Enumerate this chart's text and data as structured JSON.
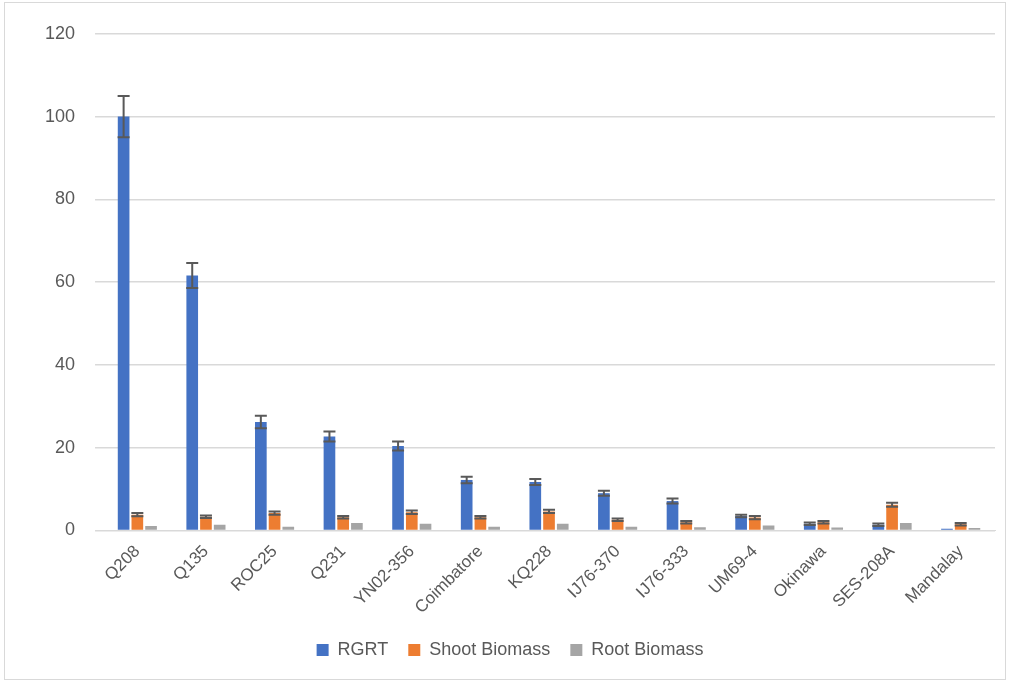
{
  "chart_data": {
    "type": "bar",
    "categories": [
      "Q208",
      "Q135",
      "ROC25",
      "Q231",
      "YN02-356",
      "Coimbatore",
      "KQ228",
      "IJ76-370",
      "IJ76-333",
      "UM69-4",
      "Okinawa",
      "SES-208A",
      "Mandalay"
    ],
    "series": [
      {
        "name": "RGRT",
        "color": "#4472c4",
        "values": [
          100,
          61.6,
          26.2,
          22.7,
          20.4,
          12.2,
          11.7,
          9.0,
          7.1,
          3.5,
          1.6,
          1.4,
          0.4
        ],
        "errors": [
          5,
          3,
          1.5,
          1.2,
          1.1,
          0.8,
          0.7,
          0.6,
          0.6,
          0.3,
          0.3,
          0.3,
          null
        ]
      },
      {
        "name": "Shoot Biomass",
        "color": "#ed7d31",
        "values": [
          3.8,
          3.3,
          4.2,
          3.2,
          4.4,
          3.2,
          4.6,
          2.6,
          2.0,
          3.1,
          2.0,
          6.2,
          1.5
        ],
        "errors": [
          0.4,
          0.3,
          0.4,
          0.3,
          0.4,
          0.3,
          0.4,
          0.3,
          0.3,
          0.4,
          0.3,
          0.5,
          0.3
        ]
      },
      {
        "name": "Root Biomass",
        "color": "#a5a5a5",
        "values": [
          1.1,
          1.4,
          0.9,
          1.8,
          1.6,
          0.9,
          1.6,
          0.9,
          0.8,
          1.2,
          0.7,
          1.8,
          0.6
        ]
      }
    ],
    "ylim": [
      0,
      120
    ],
    "yticks": [
      0,
      20,
      40,
      60,
      80,
      100,
      120
    ],
    "grid": "y",
    "legend": "bottom"
  }
}
